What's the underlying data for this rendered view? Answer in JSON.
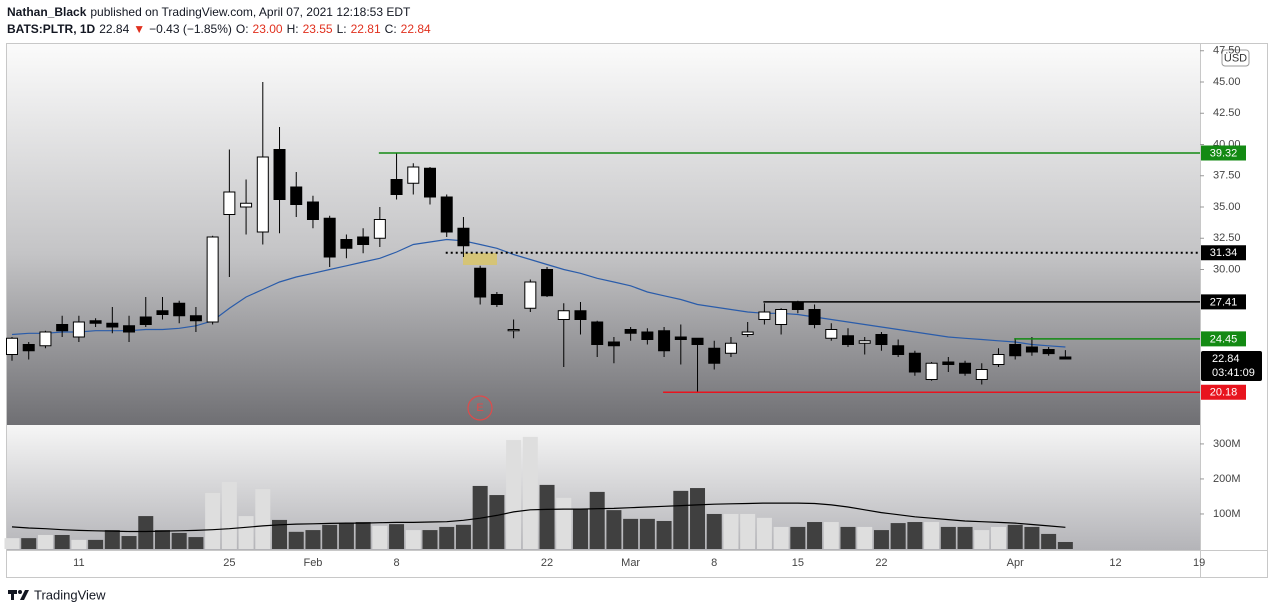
{
  "header": {
    "author": "Nathan_Black",
    "published": "published on TradingView.com, April 07, 2021 12:18:53 EDT",
    "symbol": "BATS:PLTR, 1D",
    "last": "22.84",
    "direction": "▼",
    "change": "−0.43 (−1.85%)",
    "ohlc": [
      {
        "key": "O:",
        "value": "23.00"
      },
      {
        "key": "H:",
        "value": "23.55"
      },
      {
        "key": "L:",
        "value": "22.81"
      },
      {
        "key": "C:",
        "value": "22.84"
      }
    ]
  },
  "footer": {
    "brand": "TradingView"
  },
  "chart_data": [
    {
      "type": "candlestick",
      "categories": [
        null,
        null,
        null,
        null,
        "11",
        null,
        null,
        null,
        null,
        null,
        null,
        null,
        null,
        "25",
        null,
        null,
        null,
        null,
        "Feb",
        null,
        null,
        null,
        null,
        "8",
        null,
        null,
        null,
        null,
        null,
        null,
        null,
        null,
        "22",
        null,
        null,
        null,
        null,
        "Mar",
        null,
        null,
        null,
        null,
        "8",
        null,
        null,
        null,
        null,
        "15",
        null,
        null,
        null,
        null,
        "22",
        null,
        null,
        null,
        null,
        null,
        null,
        null,
        "Apr",
        null,
        null,
        null,
        null,
        null,
        "12",
        null,
        null,
        null,
        null,
        "19"
      ],
      "open": [
        23.2,
        24.0,
        23.9,
        25.6,
        24.6,
        25.9,
        25.7,
        25.5,
        26.2,
        26.7,
        27.3,
        26.3,
        25.8,
        34.4,
        35.0,
        33.0,
        39.6,
        36.6,
        35.4,
        34.1,
        32.4,
        32.6,
        32.5,
        37.2,
        36.9,
        38.1,
        35.8,
        33.3,
        30.1,
        28.0,
        25.1,
        26.9,
        30.0,
        26.0,
        26.7,
        25.8,
        24.2,
        25.2,
        25.0,
        25.1,
        24.6,
        24.5,
        23.7,
        23.3,
        24.8,
        26.0,
        25.6,
        27.4,
        26.8,
        24.5,
        24.7,
        24.1,
        24.8,
        23.9,
        23.3,
        21.2,
        22.6,
        22.5,
        21.2,
        22.4,
        24.0,
        23.8,
        23.6,
        23.0,
        null,
        null,
        null,
        null,
        null,
        null,
        null,
        null
      ],
      "high": [
        24.6,
        24.2,
        25.1,
        26.3,
        26.3,
        26.1,
        27.0,
        26.3,
        27.8,
        27.8,
        27.5,
        27.0,
        32.7,
        39.6,
        37.2,
        45.0,
        41.4,
        37.8,
        35.9,
        34.3,
        32.8,
        33.3,
        35.0,
        39.3,
        38.5,
        38.2,
        36.0,
        34.2,
        30.3,
        28.2,
        26.0,
        29.2,
        30.2,
        27.3,
        27.4,
        25.9,
        24.6,
        25.4,
        25.3,
        25.4,
        25.6,
        24.5,
        24.3,
        24.6,
        25.8,
        27.3,
        26.9,
        27.5,
        27.2,
        25.7,
        25.3,
        24.6,
        25.0,
        24.4,
        23.5,
        22.6,
        23.0,
        22.7,
        22.5,
        23.7,
        24.5,
        24.6,
        23.8,
        23.55,
        null,
        null,
        null,
        null,
        null,
        null,
        null,
        null
      ],
      "low": [
        22.7,
        22.8,
        23.7,
        24.6,
        24.2,
        25.4,
        24.9,
        24.2,
        25.4,
        26.0,
        25.7,
        25.0,
        25.6,
        29.4,
        32.8,
        32.0,
        32.9,
        34.2,
        33.3,
        30.2,
        30.9,
        31.3,
        31.8,
        35.6,
        36.0,
        35.2,
        32.6,
        31.0,
        27.2,
        27.0,
        24.5,
        26.6,
        27.8,
        22.2,
        24.8,
        23.0,
        22.5,
        24.3,
        24.0,
        23.0,
        22.4,
        20.18,
        22.0,
        23.0,
        24.6,
        25.6,
        24.8,
        26.5,
        25.3,
        24.3,
        23.8,
        23.2,
        23.5,
        23.0,
        21.5,
        21.1,
        21.8,
        21.5,
        20.8,
        22.2,
        22.8,
        23.1,
        23.1,
        22.81,
        null,
        null,
        null,
        null,
        null,
        null,
        null,
        null
      ],
      "close": [
        24.5,
        23.5,
        25.0,
        25.1,
        25.8,
        25.7,
        25.4,
        25.0,
        25.6,
        26.4,
        26.3,
        25.9,
        32.6,
        36.2,
        35.3,
        39.0,
        35.6,
        35.2,
        34.0,
        31.0,
        31.7,
        32.0,
        34.0,
        36.0,
        38.2,
        35.8,
        33.0,
        31.9,
        27.8,
        27.2,
        25.2,
        29.0,
        27.9,
        26.7,
        26.0,
        24.0,
        23.9,
        24.9,
        24.4,
        23.5,
        24.4,
        24.0,
        22.5,
        24.1,
        25.0,
        26.6,
        26.8,
        26.8,
        25.6,
        25.2,
        24.0,
        24.3,
        24.0,
        23.2,
        21.8,
        22.5,
        22.4,
        21.7,
        22.0,
        23.2,
        23.1,
        23.4,
        23.27,
        22.84,
        null,
        null,
        null,
        null,
        null,
        null,
        null,
        null
      ],
      "up_color": "#ffffff",
      "down_color": "#000000",
      "ma": {
        "color": "#2a5caa",
        "values": [
          24.8,
          24.9,
          24.9,
          25.0,
          25.0,
          25.1,
          25.1,
          25.1,
          25.2,
          25.2,
          25.3,
          25.5,
          25.9,
          26.9,
          27.8,
          28.4,
          29.0,
          29.4,
          29.7,
          30.0,
          30.3,
          30.6,
          30.9,
          31.4,
          32.0,
          32.2,
          32.4,
          32.3,
          32.0,
          31.7,
          31.2,
          30.8,
          30.4,
          30.0,
          29.7,
          29.3,
          29.0,
          28.7,
          28.2,
          27.9,
          27.6,
          27.2,
          27.0,
          26.8,
          26.6,
          26.5,
          26.5,
          26.4,
          26.2,
          26.0,
          25.8,
          25.6,
          25.4,
          25.2,
          25.0,
          24.8,
          24.6,
          24.5,
          24.4,
          24.3,
          24.2,
          24.0,
          23.9,
          23.8,
          null,
          null,
          null,
          null,
          null,
          null,
          null,
          null
        ]
      },
      "ylim": [
        17.56,
        48.04
      ],
      "yticks": [
        {
          "value": 47.5,
          "label": "47.50"
        },
        {
          "value": 45,
          "label": "45.00"
        },
        {
          "value": 42.5,
          "label": "42.50"
        },
        {
          "value": 40,
          "label": "40.00"
        },
        {
          "value": 37.5,
          "label": "37.50"
        },
        {
          "value": 35,
          "label": "35.00"
        },
        {
          "value": 32.5,
          "label": "32.50"
        },
        {
          "value": 30,
          "label": "30.00"
        }
      ],
      "levels": [
        {
          "value": 39.32,
          "color": "#138a13",
          "style": "solid"
        },
        {
          "value": 31.34,
          "color": "#000000",
          "style": "dotted"
        },
        {
          "value": 27.41,
          "color": "#000000",
          "style": "solid"
        },
        {
          "value": 24.45,
          "color": "#138a13",
          "style": "solid"
        },
        {
          "value": 20.18,
          "color": "#e8141e",
          "style": "solid"
        }
      ],
      "countdown": "03:41:09",
      "currency": "USD",
      "earnings_marker": "E"
    },
    {
      "type": "bar",
      "values": [
        31000000,
        31000000,
        40000000,
        40000000,
        26000000,
        26000000,
        54000000,
        37000000,
        94000000,
        54000000,
        46000000,
        34000000,
        160000000,
        191000000,
        94000000,
        171000000,
        83000000,
        49000000,
        54000000,
        69000000,
        74000000,
        77000000,
        66000000,
        71000000,
        54000000,
        54000000,
        63000000,
        69000000,
        180000000,
        154000000,
        311000000,
        320000000,
        183000000,
        146000000,
        114000000,
        163000000,
        111000000,
        86000000,
        86000000,
        80000000,
        166000000,
        174000000,
        100000000,
        100000000,
        100000000,
        89000000,
        63000000,
        63000000,
        77000000,
        77000000,
        63000000,
        63000000,
        54000000,
        74000000,
        77000000,
        77000000,
        63000000,
        63000000,
        54000000,
        63000000,
        69000000,
        63000000,
        43000000,
        20000000,
        null,
        null,
        null,
        null,
        null,
        null,
        null,
        null
      ],
      "up_color": "#dedede",
      "down_color": "#404040",
      "ma": {
        "color": "#000000",
        "values": [
          63000000,
          60000000,
          58000000,
          55000000,
          53000000,
          52000000,
          51000000,
          50000000,
          50000000,
          51000000,
          52000000,
          53000000,
          55000000,
          58000000,
          62000000,
          66000000,
          69000000,
          71000000,
          72000000,
          73000000,
          74000000,
          74000000,
          75000000,
          76000000,
          76000000,
          77000000,
          78000000,
          82000000,
          88000000,
          96000000,
          106000000,
          112000000,
          113000000,
          114000000,
          114000000,
          115000000,
          116000000,
          118000000,
          120000000,
          122000000,
          124000000,
          126000000,
          128000000,
          129000000,
          130000000,
          131000000,
          131000000,
          131000000,
          130000000,
          126000000,
          120000000,
          112000000,
          104000000,
          98000000,
          92000000,
          88000000,
          84000000,
          80000000,
          78000000,
          76000000,
          74000000,
          70000000,
          66000000,
          62000000,
          null,
          null,
          null,
          null,
          null,
          null,
          null,
          null
        ]
      },
      "ylim": [
        0,
        354000000
      ],
      "yticks": [
        {
          "value": 100000000,
          "label": "100M"
        },
        {
          "value": 200000000,
          "label": "200M"
        },
        {
          "value": 300000000,
          "label": "300M"
        }
      ]
    }
  ]
}
